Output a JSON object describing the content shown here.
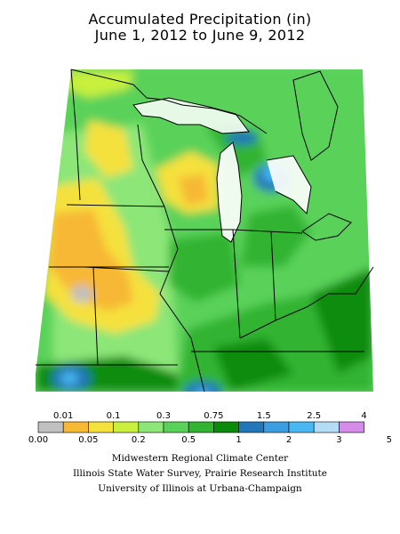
{
  "title": {
    "line1": "Accumulated Precipitation (in)",
    "line2": "June 1, 2012 to June 9, 2012"
  },
  "legend": {
    "colors": [
      "#c0c0c0",
      "#f7b834",
      "#f5e13c",
      "#c8f03c",
      "#8ce678",
      "#5ad25a",
      "#32b432",
      "#0a8c0a",
      "#2277b8",
      "#3a9ee0",
      "#4ab8f0",
      "#b4dcf4",
      "#d48ce8"
    ],
    "top_labels": [
      "0.01",
      "0.1",
      "0.3",
      "0.75",
      "1.5",
      "2.5",
      "4"
    ],
    "bottom_labels": [
      "0.00",
      "0.05",
      "0.2",
      "0.5",
      "1",
      "2",
      "3",
      "5"
    ]
  },
  "credits": {
    "line1": "Midwestern Regional Climate Center",
    "line2": "Illinois State Water Survey, Prairie Research Institute",
    "line3": "University of Illinois at Urbana-Champaign"
  }
}
